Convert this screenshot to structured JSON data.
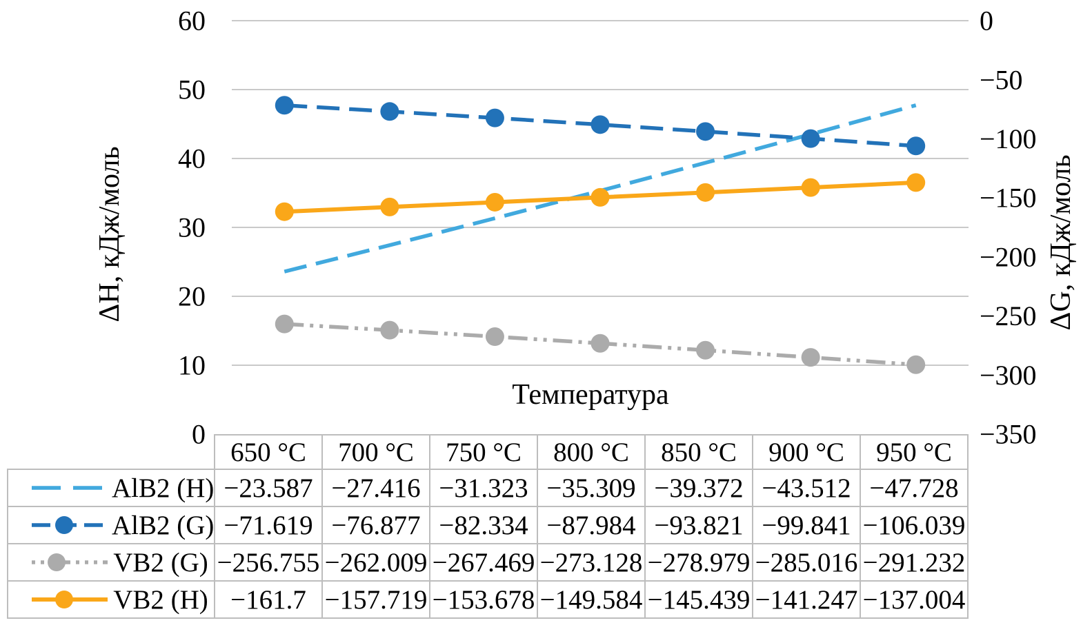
{
  "chart_data": {
    "type": "line",
    "x_title": "Температура",
    "left_axis": {
      "title": "ΔH, кДж/моль",
      "ticks": [
        0,
        10,
        20,
        30,
        40,
        50,
        60
      ],
      "range": [
        0,
        60
      ]
    },
    "right_axis": {
      "title": "ΔG, кДж/моль",
      "ticks": [
        0,
        -50,
        -100,
        -150,
        -200,
        -250,
        -300,
        -350
      ],
      "range": [
        0,
        -350
      ]
    },
    "categories": [
      "650 °C",
      "700 °C",
      "750 °C",
      "800 °C",
      "850 °C",
      "900 °C",
      "950 °C"
    ],
    "series": [
      {
        "name": "AlB2 (H)",
        "color": "#41A9DE",
        "line": "dash",
        "markers": false,
        "axis": "left_abs",
        "values": [
          -23.587,
          -27.416,
          -31.323,
          -35.309,
          -39.372,
          -43.512,
          -47.728
        ]
      },
      {
        "name": "AlB2 (G)",
        "color": "#2272B8",
        "line": "dash",
        "markers": true,
        "axis": "right",
        "values": [
          -71.619,
          -76.877,
          -82.334,
          -87.984,
          -93.821,
          -99.841,
          -106.039
        ]
      },
      {
        "name": "VB2 (G)",
        "color": "#ABABAB",
        "line": "dash-dot-dot",
        "markers": true,
        "axis": "right",
        "values": [
          -256.755,
          -262.009,
          -267.469,
          -273.128,
          -278.979,
          -285.016,
          -291.232
        ]
      },
      {
        "name": "VB2 (H)",
        "color": "#FAA719",
        "line": "solid",
        "markers": true,
        "axis": "right",
        "values": [
          -161.7,
          -157.719,
          -153.678,
          -149.584,
          -145.439,
          -141.247,
          -137.004
        ]
      }
    ],
    "grid": "horizontal",
    "grid_color": "#C9C9C9",
    "table_border_color": "#BDBDBD",
    "legend_position": "table-left-column"
  }
}
